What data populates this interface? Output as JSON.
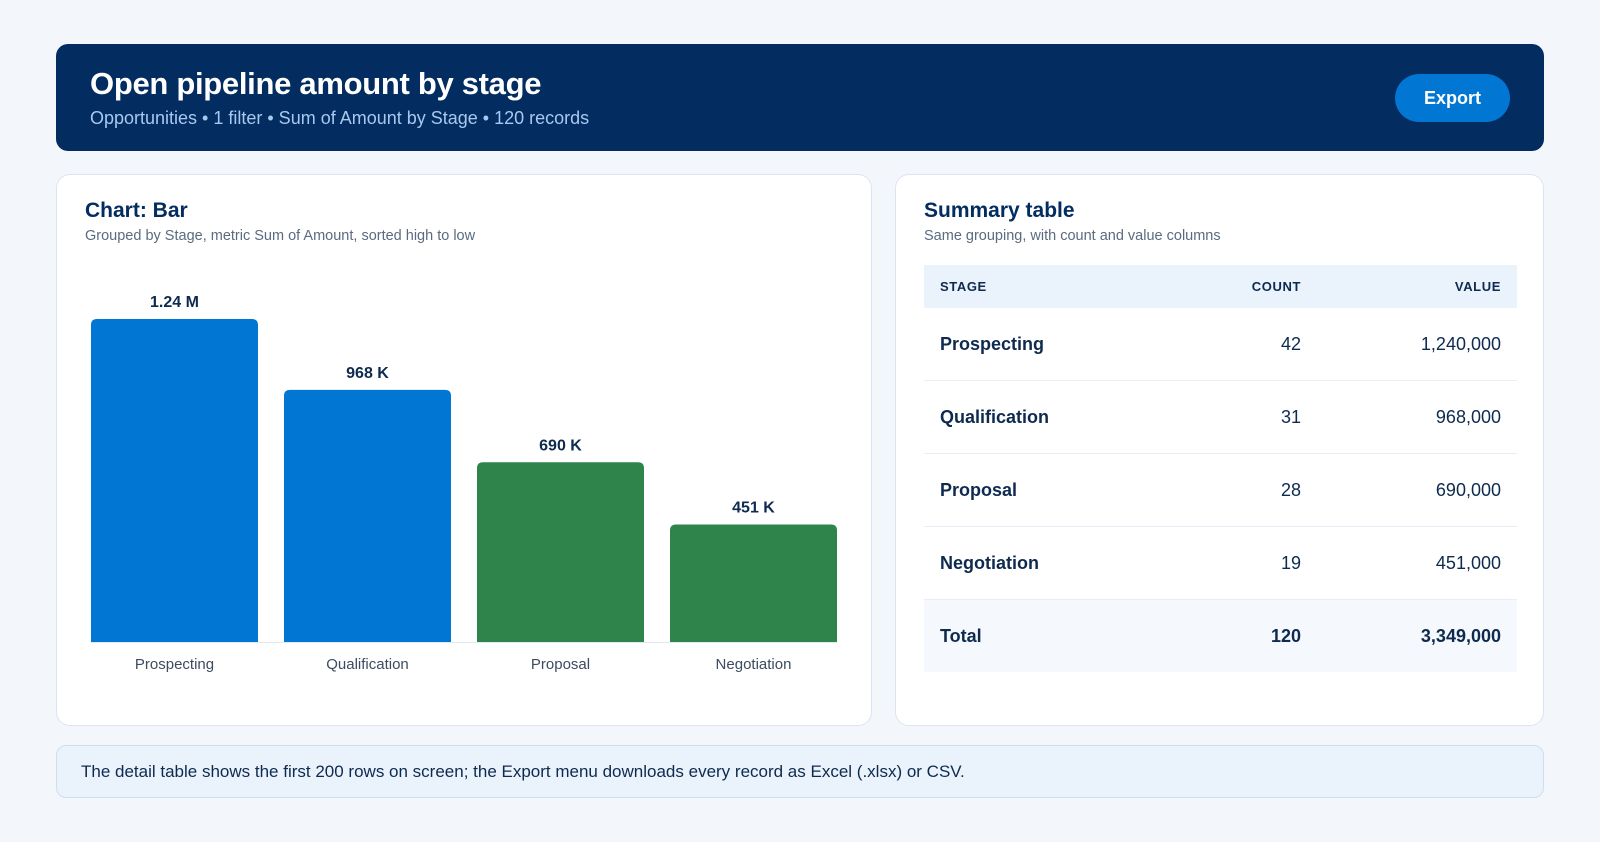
{
  "header": {
    "title": "Open pipeline amount by stage",
    "subtitle": "Opportunities • 1 filter • Sum of Amount by Stage • 120 records",
    "export_label": "Export"
  },
  "chart_card": {
    "title": "Chart: Bar",
    "subtitle": "Grouped by Stage, metric Sum of Amount, sorted high to low"
  },
  "chart_data": {
    "type": "bar",
    "categories": [
      "Prospecting",
      "Qualification",
      "Proposal",
      "Negotiation"
    ],
    "values": [
      1240000,
      968000,
      690000,
      451000
    ],
    "data_labels": [
      "1.24 M",
      "968 K",
      "690 K",
      "451 K"
    ],
    "colors": [
      "#0176d3",
      "#0176d3",
      "#2e844a",
      "#2e844a"
    ],
    "title": "",
    "xlabel": "",
    "ylabel": "",
    "ylim": [
      0,
      1240000
    ],
    "grid": false
  },
  "summary_card": {
    "title": "Summary table",
    "subtitle": "Same grouping, with count and value columns",
    "columns": [
      "STAGE",
      "COUNT",
      "VALUE"
    ],
    "rows": [
      {
        "stage": "Prospecting",
        "count": "42",
        "value": "1,240,000"
      },
      {
        "stage": "Qualification",
        "count": "31",
        "value": "968,000"
      },
      {
        "stage": "Proposal",
        "count": "28",
        "value": "690,000"
      },
      {
        "stage": "Negotiation",
        "count": "19",
        "value": "451,000"
      }
    ],
    "total": {
      "stage": "Total",
      "count": "120",
      "value": "3,349,000"
    }
  },
  "note": "The detail table shows the first 200 rows on screen; the Export menu downloads every record as Excel (.xlsx) or CSV."
}
